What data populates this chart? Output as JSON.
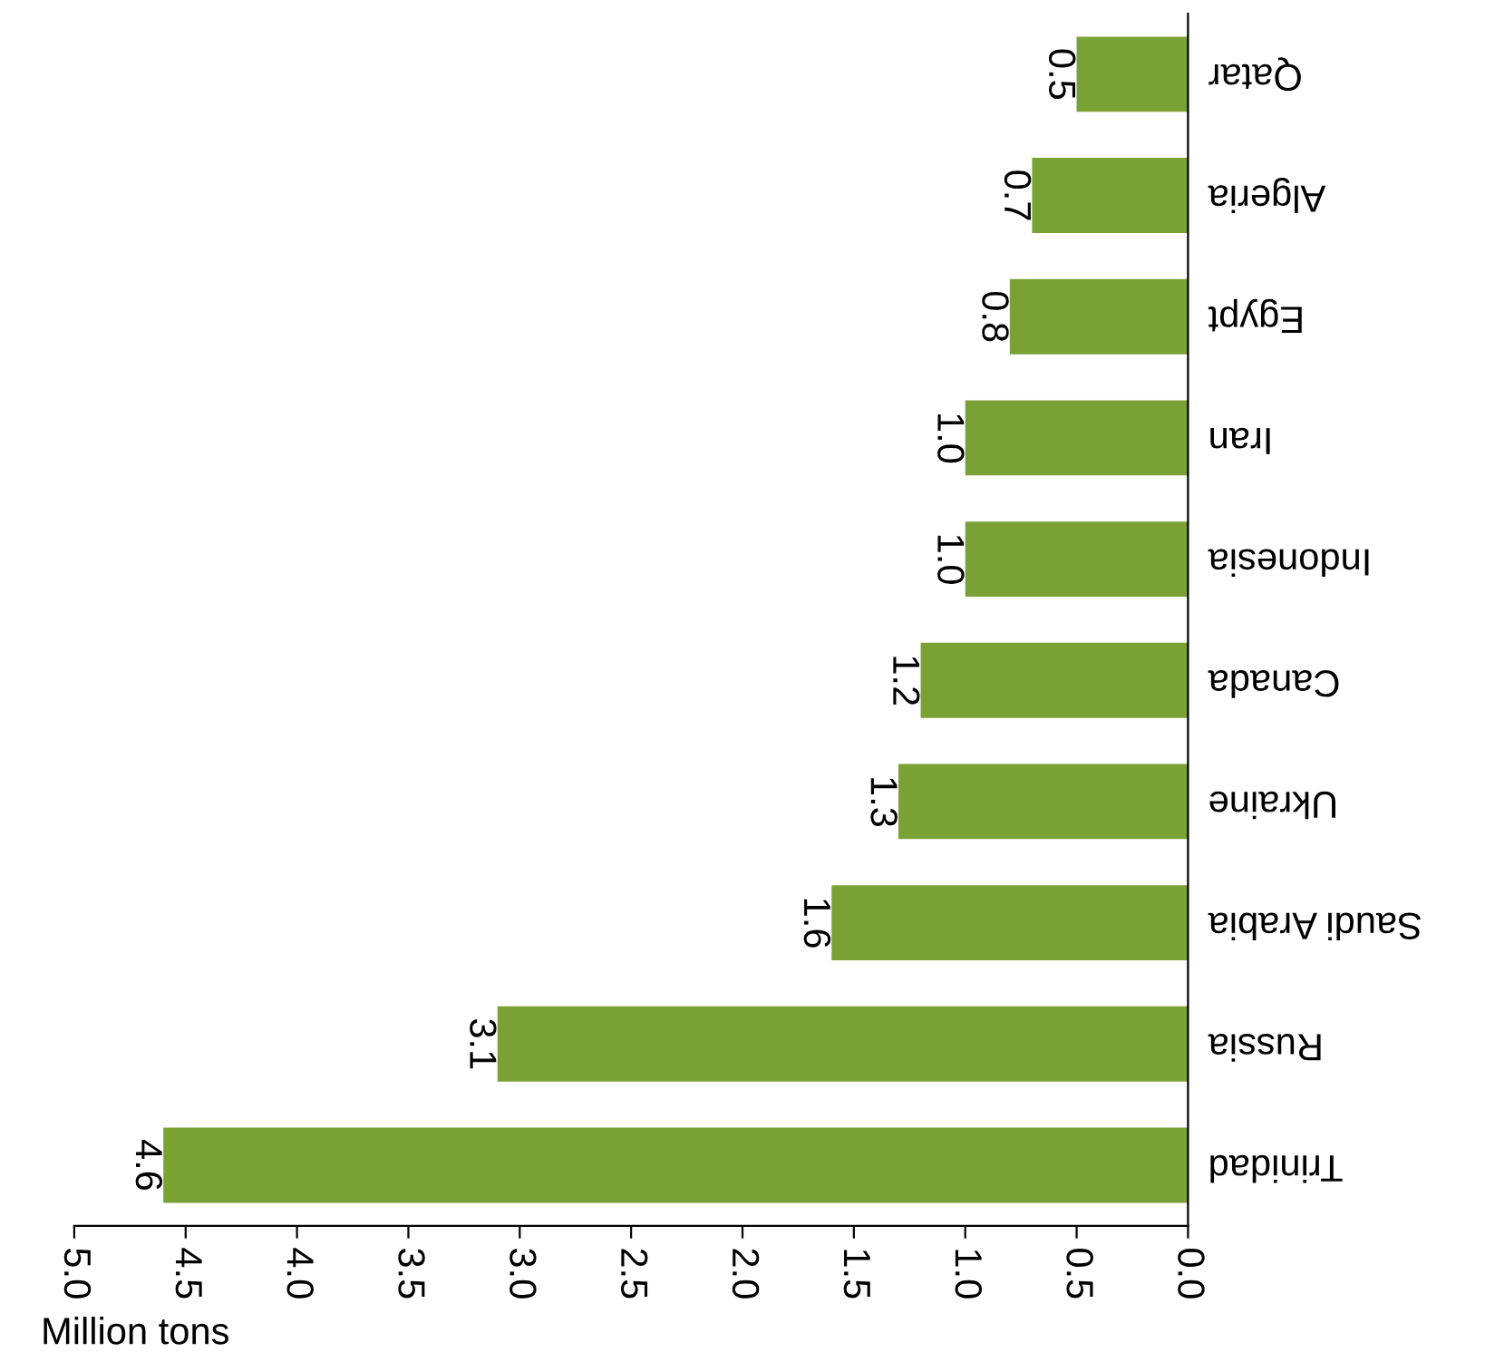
{
  "chart_data": {
    "type": "bar",
    "orientation": "horizontal",
    "xlabel": "Million tons",
    "categories": [
      "Qatar",
      "Algeria",
      "Egypt",
      "Iran",
      "Indonesia",
      "Canada",
      "Ukraine",
      "Saudi Arabia",
      "Russia",
      "Trinidad"
    ],
    "values": [
      0.5,
      0.7,
      0.8,
      1.0,
      1.0,
      1.2,
      1.3,
      1.6,
      3.1,
      4.6
    ],
    "color": "#7aa134",
    "value_labels": [
      "0.5",
      "0.7",
      "0.8",
      "1.0",
      "1.0",
      "1.2",
      "1.3",
      "1.6",
      "3.1",
      "4.6"
    ],
    "xlim": [
      5.0,
      0.0
    ],
    "xticks": [
      {
        "value": 5.0,
        "label": "5.0"
      },
      {
        "value": 4.5,
        "label": "4.5"
      },
      {
        "value": 4.0,
        "label": "4.0"
      },
      {
        "value": 3.5,
        "label": "3.5"
      },
      {
        "value": 3.0,
        "label": "3.0"
      },
      {
        "value": 2.5,
        "label": "2.5"
      },
      {
        "value": 2.0,
        "label": "2.0"
      },
      {
        "value": 1.5,
        "label": "1.5"
      },
      {
        "value": 1.0,
        "label": "1.0"
      },
      {
        "value": 0.5,
        "label": "0.5"
      },
      {
        "value": 0.0,
        "label": "0.0"
      }
    ],
    "grid": false,
    "legend": false
  }
}
